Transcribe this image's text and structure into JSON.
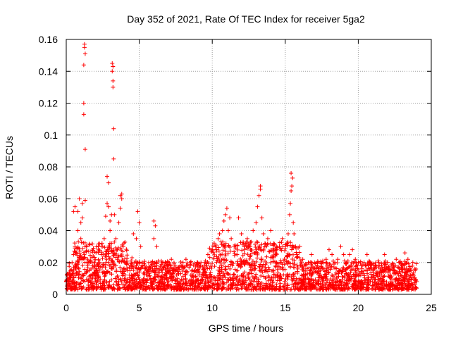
{
  "chart_data": {
    "type": "scatter",
    "title": "Day 352 of 2021, Rate Of TEC Index for receiver 5ga2",
    "xlabel": "GPS time / hours",
    "ylabel": "ROTI / TECUs",
    "xlim": [
      0,
      25
    ],
    "ylim": [
      0,
      0.16
    ],
    "xticks": [
      0,
      5,
      10,
      15,
      20,
      25
    ],
    "yticks": [
      0,
      0.02,
      0.04,
      0.06,
      0.08,
      0.1,
      0.12,
      0.14,
      0.16
    ],
    "ytick_labels": [
      "0",
      "0.02",
      "0.04",
      "0.06",
      "0.08",
      "0.1",
      "0.12",
      "0.14",
      "0.16"
    ],
    "grid": true,
    "marker": "+",
    "color": "#ff0000",
    "series": [
      {
        "name": "ROTI",
        "points": [
          [
            0.0,
            0.008
          ],
          [
            0.1,
            0.006
          ],
          [
            0.2,
            0.012
          ],
          [
            0.3,
            0.015
          ],
          [
            0.4,
            0.02
          ],
          [
            0.5,
            0.025
          ],
          [
            0.5,
            0.052
          ],
          [
            0.6,
            0.055
          ],
          [
            0.6,
            0.03
          ],
          [
            0.7,
            0.018
          ],
          [
            0.8,
            0.04
          ],
          [
            0.8,
            0.052
          ],
          [
            0.9,
            0.06
          ],
          [
            1.0,
            0.045
          ],
          [
            1.0,
            0.035
          ],
          [
            1.1,
            0.048
          ],
          [
            1.1,
            0.057
          ],
          [
            1.2,
            0.12
          ],
          [
            1.2,
            0.113
          ],
          [
            1.2,
            0.144
          ],
          [
            1.25,
            0.157
          ],
          [
            1.25,
            0.155
          ],
          [
            1.3,
            0.151
          ],
          [
            1.3,
            0.091
          ],
          [
            1.3,
            0.059
          ],
          [
            1.4,
            0.03
          ],
          [
            1.5,
            0.02
          ],
          [
            1.6,
            0.015
          ],
          [
            1.7,
            0.012
          ],
          [
            1.8,
            0.018
          ],
          [
            1.9,
            0.014
          ],
          [
            2.0,
            0.01
          ],
          [
            2.1,
            0.016
          ],
          [
            2.2,
            0.012
          ],
          [
            2.3,
            0.02
          ],
          [
            2.4,
            0.025
          ],
          [
            2.5,
            0.03
          ],
          [
            2.6,
            0.035
          ],
          [
            2.7,
            0.049
          ],
          [
            2.8,
            0.057
          ],
          [
            2.8,
            0.074
          ],
          [
            2.9,
            0.07
          ],
          [
            2.9,
            0.055
          ],
          [
            3.0,
            0.046
          ],
          [
            3.0,
            0.04
          ],
          [
            3.1,
            0.05
          ],
          [
            3.1,
            0.032
          ],
          [
            3.15,
            0.145
          ],
          [
            3.15,
            0.14
          ],
          [
            3.2,
            0.143
          ],
          [
            3.2,
            0.134
          ],
          [
            3.2,
            0.13
          ],
          [
            3.25,
            0.104
          ],
          [
            3.25,
            0.085
          ],
          [
            3.3,
            0.05
          ],
          [
            3.4,
            0.035
          ],
          [
            3.5,
            0.028
          ],
          [
            3.6,
            0.045
          ],
          [
            3.7,
            0.054
          ],
          [
            3.7,
            0.062
          ],
          [
            3.8,
            0.06
          ],
          [
            3.8,
            0.063
          ],
          [
            3.9,
            0.03
          ],
          [
            4.0,
            0.02
          ],
          [
            4.2,
            0.015
          ],
          [
            4.4,
            0.018
          ],
          [
            4.5,
            0.023
          ],
          [
            4.6,
            0.038
          ],
          [
            4.8,
            0.035
          ],
          [
            4.9,
            0.052
          ],
          [
            5.0,
            0.045
          ],
          [
            5.1,
            0.03
          ],
          [
            5.2,
            0.02
          ],
          [
            5.5,
            0.015
          ],
          [
            5.8,
            0.02
          ],
          [
            6.0,
            0.035
          ],
          [
            6.0,
            0.046
          ],
          [
            6.1,
            0.043
          ],
          [
            6.2,
            0.03
          ],
          [
            6.5,
            0.015
          ],
          [
            6.8,
            0.012
          ],
          [
            7.0,
            0.02
          ],
          [
            7.2,
            0.022
          ],
          [
            7.5,
            0.015
          ],
          [
            7.8,
            0.018
          ],
          [
            8.0,
            0.02
          ],
          [
            8.2,
            0.022
          ],
          [
            8.5,
            0.018
          ],
          [
            8.8,
            0.015
          ],
          [
            9.0,
            0.02
          ],
          [
            9.2,
            0.018
          ],
          [
            9.5,
            0.02
          ],
          [
            9.7,
            0.025
          ],
          [
            10.0,
            0.028
          ],
          [
            10.2,
            0.03
          ],
          [
            10.4,
            0.035
          ],
          [
            10.5,
            0.038
          ],
          [
            10.6,
            0.033
          ],
          [
            10.7,
            0.04
          ],
          [
            10.8,
            0.046
          ],
          [
            10.9,
            0.05
          ],
          [
            11.0,
            0.054
          ],
          [
            11.1,
            0.04
          ],
          [
            11.2,
            0.048
          ],
          [
            11.3,
            0.035
          ],
          [
            11.5,
            0.03
          ],
          [
            11.7,
            0.025
          ],
          [
            11.8,
            0.048
          ],
          [
            12.0,
            0.038
          ],
          [
            12.2,
            0.03
          ],
          [
            12.4,
            0.035
          ],
          [
            12.6,
            0.03
          ],
          [
            12.8,
            0.04
          ],
          [
            13.0,
            0.045
          ],
          [
            13.1,
            0.055
          ],
          [
            13.2,
            0.062
          ],
          [
            13.3,
            0.066
          ],
          [
            13.3,
            0.068
          ],
          [
            13.4,
            0.048
          ],
          [
            13.5,
            0.038
          ],
          [
            13.6,
            0.03
          ],
          [
            13.8,
            0.035
          ],
          [
            14.0,
            0.04
          ],
          [
            14.2,
            0.032
          ],
          [
            14.4,
            0.028
          ],
          [
            14.6,
            0.03
          ],
          [
            14.8,
            0.035
          ],
          [
            15.0,
            0.03
          ],
          [
            15.2,
            0.038
          ],
          [
            15.3,
            0.05
          ],
          [
            15.35,
            0.057
          ],
          [
            15.4,
            0.065
          ],
          [
            15.4,
            0.076
          ],
          [
            15.45,
            0.068
          ],
          [
            15.5,
            0.073
          ],
          [
            15.55,
            0.045
          ],
          [
            15.6,
            0.038
          ],
          [
            15.7,
            0.03
          ],
          [
            15.8,
            0.025
          ],
          [
            16.0,
            0.03
          ],
          [
            16.2,
            0.022
          ],
          [
            16.4,
            0.018
          ],
          [
            16.6,
            0.02
          ],
          [
            16.8,
            0.025
          ],
          [
            17.0,
            0.02
          ],
          [
            17.2,
            0.018
          ],
          [
            17.4,
            0.015
          ],
          [
            17.6,
            0.02
          ],
          [
            17.8,
            0.022
          ],
          [
            18.0,
            0.028
          ],
          [
            18.2,
            0.025
          ],
          [
            18.4,
            0.02
          ],
          [
            18.6,
            0.022
          ],
          [
            18.8,
            0.03
          ],
          [
            19.0,
            0.025
          ],
          [
            19.2,
            0.02
          ],
          [
            19.4,
            0.025
          ],
          [
            19.6,
            0.028
          ],
          [
            19.8,
            0.022
          ],
          [
            20.0,
            0.02
          ],
          [
            20.2,
            0.018
          ],
          [
            20.4,
            0.02
          ],
          [
            20.6,
            0.025
          ],
          [
            20.8,
            0.02
          ],
          [
            21.0,
            0.015
          ],
          [
            21.2,
            0.018
          ],
          [
            21.4,
            0.02
          ],
          [
            21.6,
            0.018
          ],
          [
            21.8,
            0.025
          ],
          [
            22.0,
            0.02
          ],
          [
            22.2,
            0.015
          ],
          [
            22.4,
            0.018
          ],
          [
            22.6,
            0.022
          ],
          [
            22.8,
            0.02
          ],
          [
            23.0,
            0.018
          ],
          [
            23.2,
            0.026
          ],
          [
            23.4,
            0.022
          ],
          [
            23.6,
            0.015
          ],
          [
            23.8,
            0.012
          ],
          [
            24.0,
            0.008
          ]
        ]
      }
    ]
  }
}
